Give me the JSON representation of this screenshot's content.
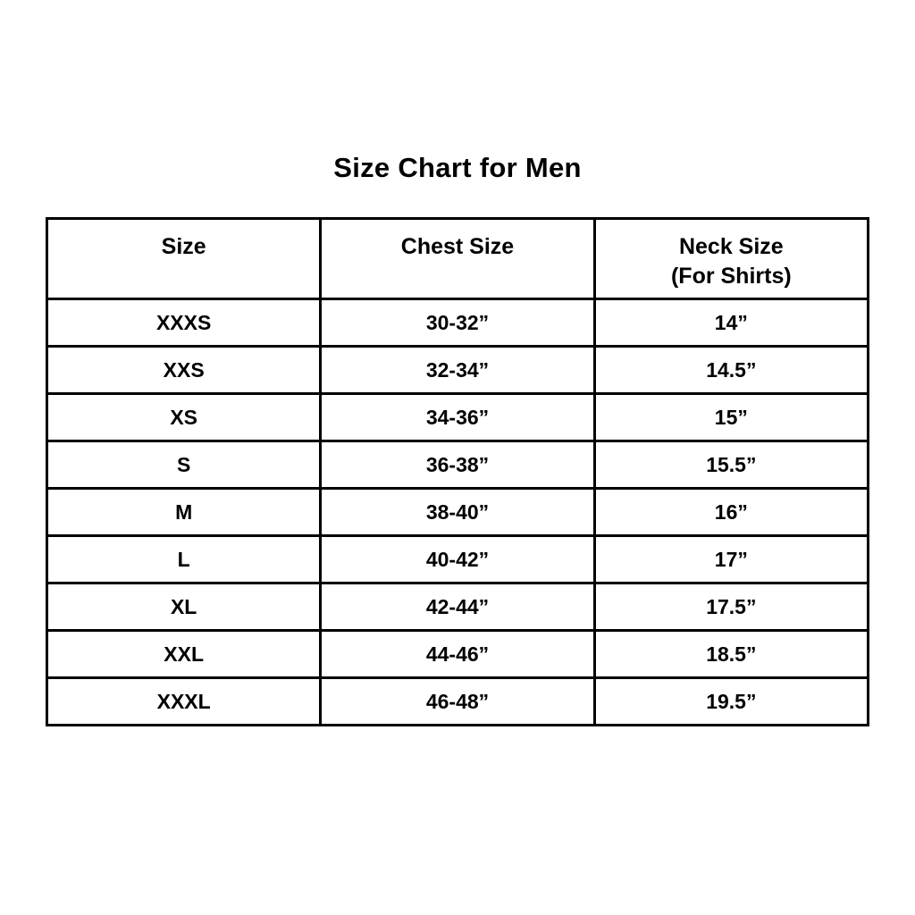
{
  "title": "Size Chart for Men",
  "colors": {
    "background": "#ffffff",
    "text": "#000000",
    "border": "#000000"
  },
  "table": {
    "headers": [
      {
        "label": "Size",
        "sub": ""
      },
      {
        "label": "Chest Size",
        "sub": ""
      },
      {
        "label": "Neck Size",
        "sub": "(For Shirts)"
      }
    ],
    "rows": [
      {
        "size": "XXXS",
        "chest": "30-32”",
        "neck": "14”"
      },
      {
        "size": "XXS",
        "chest": "32-34”",
        "neck": "14.5”"
      },
      {
        "size": "XS",
        "chest": "34-36”",
        "neck": "15”"
      },
      {
        "size": "S",
        "chest": "36-38”",
        "neck": "15.5”"
      },
      {
        "size": "M",
        "chest": "38-40”",
        "neck": "16”"
      },
      {
        "size": "L",
        "chest": "40-42”",
        "neck": "17”"
      },
      {
        "size": "XL",
        "chest": "42-44”",
        "neck": "17.5”"
      },
      {
        "size": "XXL",
        "chest": "44-46”",
        "neck": "18.5”"
      },
      {
        "size": "XXXL",
        "chest": "46-48”",
        "neck": "19.5”"
      }
    ]
  },
  "chart_data": {
    "type": "table",
    "title": "Size Chart for Men",
    "columns": [
      "Size",
      "Chest Size",
      "Neck Size (For Shirts)"
    ],
    "rows": [
      [
        "XXXS",
        "30-32”",
        "14”"
      ],
      [
        "XXS",
        "32-34”",
        "14.5”"
      ],
      [
        "XS",
        "34-36”",
        "15”"
      ],
      [
        "S",
        "36-38”",
        "15.5”"
      ],
      [
        "M",
        "38-40”",
        "16”"
      ],
      [
        "L",
        "40-42”",
        "17”"
      ],
      [
        "XL",
        "42-44”",
        "17.5”"
      ],
      [
        "XXL",
        "44-46”",
        "18.5”"
      ],
      [
        "XXXL",
        "46-48”",
        "19.5”"
      ]
    ],
    "legend_position": "none",
    "grid": true
  }
}
